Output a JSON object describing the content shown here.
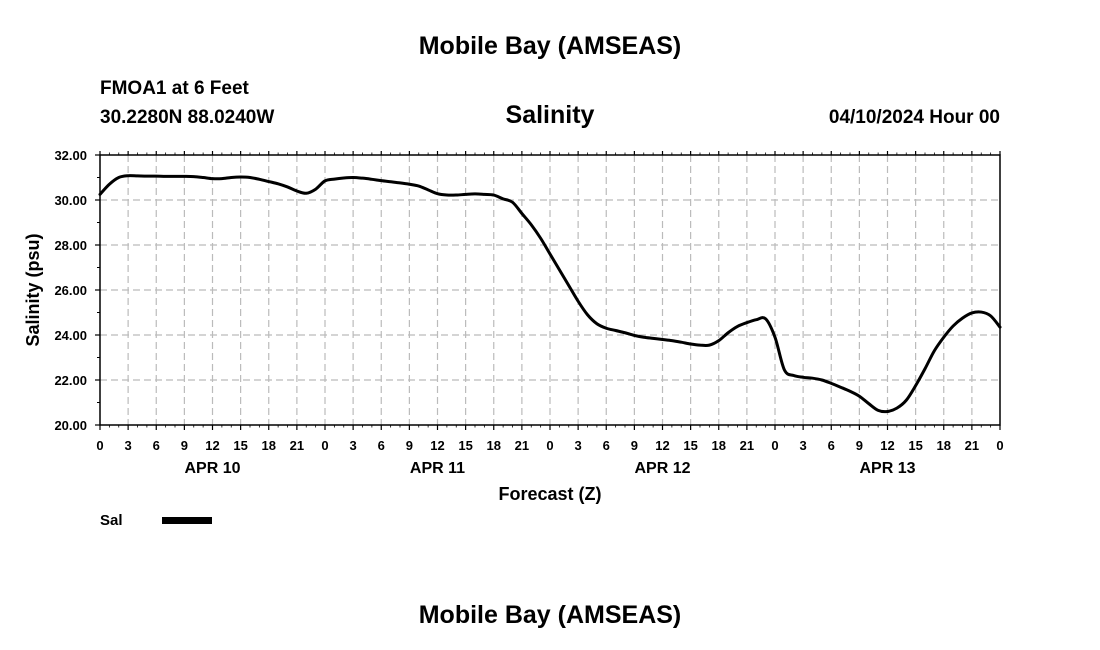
{
  "page": {
    "main_title": "Mobile Bay (AMSEAS)",
    "station_name": "FMOA1 at 6 Feet",
    "station_coords": "30.2280N  88.0240W",
    "chart_title": "Salinity",
    "date": "04/10/2024 Hour 00",
    "bottom_title": "Mobile Bay (AMSEAS)"
  },
  "colors": {
    "line": "#000000",
    "grid": "#bbbbbb",
    "background": "#ffffff"
  },
  "chart_data": {
    "type": "line",
    "title": "Salinity",
    "xlabel": "Forecast (Z)",
    "ylabel": "Salinity (psu)",
    "xlim": [
      0,
      96
    ],
    "ylim": [
      20,
      32
    ],
    "grid": true,
    "yticks": [
      "20.00",
      "22.00",
      "24.00",
      "26.00",
      "28.00",
      "30.00",
      "32.00"
    ],
    "xtick_labels": [
      "0",
      "3",
      "6",
      "9",
      "12",
      "15",
      "18",
      "21",
      "0",
      "3",
      "6",
      "9",
      "12",
      "15",
      "18",
      "21",
      "0",
      "3",
      "6",
      "9",
      "12",
      "15",
      "18",
      "21",
      "0",
      "3",
      "6",
      "9",
      "12",
      "15",
      "18",
      "21",
      "0"
    ],
    "day_labels": [
      {
        "text": "APR 10",
        "hour": 12
      },
      {
        "text": "APR 11",
        "hour": 36
      },
      {
        "text": "APR 12",
        "hour": 60
      },
      {
        "text": "APR 13",
        "hour": 84
      }
    ],
    "legend_position": "bottom-left",
    "series": [
      {
        "name": "Sal",
        "x": [
          0,
          1,
          2,
          3,
          4,
          5,
          6,
          7,
          8,
          9,
          10,
          11,
          12,
          13,
          14,
          15,
          16,
          17,
          18,
          19,
          20,
          21,
          22,
          23,
          24,
          25,
          26,
          27,
          28,
          29,
          30,
          31,
          32,
          33,
          34,
          35,
          36,
          37,
          38,
          39,
          40,
          41,
          42,
          43,
          44,
          45,
          46,
          47,
          48,
          49,
          50,
          51,
          52,
          53,
          54,
          55,
          56,
          57,
          58,
          59,
          60,
          61,
          62,
          63,
          64,
          65,
          66,
          67,
          68,
          69,
          70,
          71,
          72,
          73,
          74,
          75,
          76,
          77,
          78,
          79,
          80,
          81,
          82,
          83,
          84,
          85,
          86,
          87,
          88,
          89,
          90,
          91,
          92,
          93,
          94,
          95,
          96
        ],
        "values": [
          30.25,
          30.7,
          31.0,
          31.08,
          31.07,
          31.06,
          31.06,
          31.05,
          31.05,
          31.05,
          31.04,
          31.0,
          30.95,
          30.95,
          31.0,
          31.02,
          31.0,
          30.92,
          30.82,
          30.72,
          30.58,
          30.4,
          30.3,
          30.48,
          30.85,
          30.93,
          30.98,
          31.0,
          30.97,
          30.92,
          30.86,
          30.81,
          30.76,
          30.7,
          30.62,
          30.45,
          30.28,
          30.22,
          30.22,
          30.25,
          30.27,
          30.25,
          30.22,
          30.05,
          29.9,
          29.4,
          28.9,
          28.3,
          27.6,
          26.9,
          26.2,
          25.5,
          24.9,
          24.5,
          24.3,
          24.2,
          24.1,
          23.98,
          23.9,
          23.85,
          23.8,
          23.75,
          23.68,
          23.6,
          23.55,
          23.55,
          23.75,
          24.1,
          24.38,
          24.55,
          24.68,
          24.72,
          23.9,
          22.45,
          22.2,
          22.12,
          22.08,
          22.0,
          21.85,
          21.68,
          21.5,
          21.28,
          20.95,
          20.65,
          20.6,
          20.75,
          21.1,
          21.75,
          22.5,
          23.3,
          23.9,
          24.4,
          24.75,
          24.98,
          25.02,
          24.85,
          24.35
        ]
      }
    ]
  }
}
